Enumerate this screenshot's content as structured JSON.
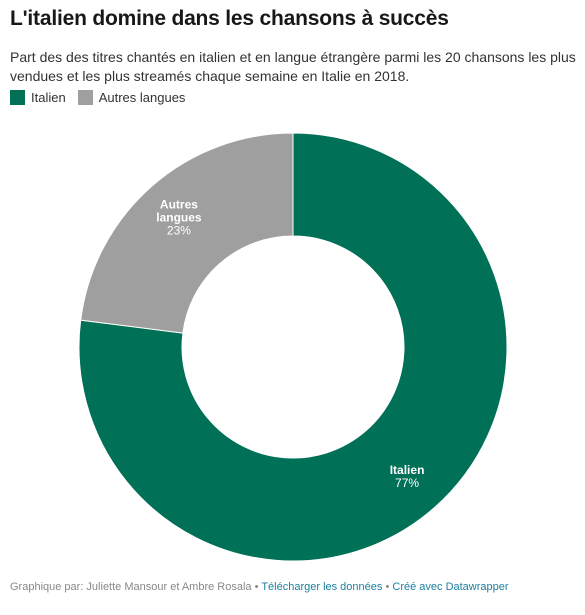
{
  "chart_data": {
    "type": "pie",
    "variant": "donut",
    "title": "L'italien domine dans les chansons à succès",
    "subtitle": "Part des des titres chantés en italien et en langue étrangère parmi les 20 chansons les plus vendues et les plus streamés chaque semaine en Italie en 2018.",
    "legend_position": "top-left",
    "slices": [
      {
        "name": "Italien",
        "value": 77,
        "value_label": "77%",
        "label_lines": [
          "Italien"
        ],
        "color": "#007057"
      },
      {
        "name": "Autres langues",
        "value": 23,
        "value_label": "23%",
        "label_lines": [
          "Autres",
          "langues"
        ],
        "color": "#9f9f9f"
      }
    ]
  },
  "legend": {
    "items": [
      {
        "label": "Italien",
        "color": "#007057"
      },
      {
        "label": "Autres langues",
        "color": "#9f9f9f"
      }
    ]
  },
  "footer": {
    "credit": "Graphique par: Juliette Mansour et Ambre Rosala",
    "separator": "•",
    "download_link": "Télécharger les données",
    "datawrapper_link": "Créé avec Datawrapper"
  }
}
